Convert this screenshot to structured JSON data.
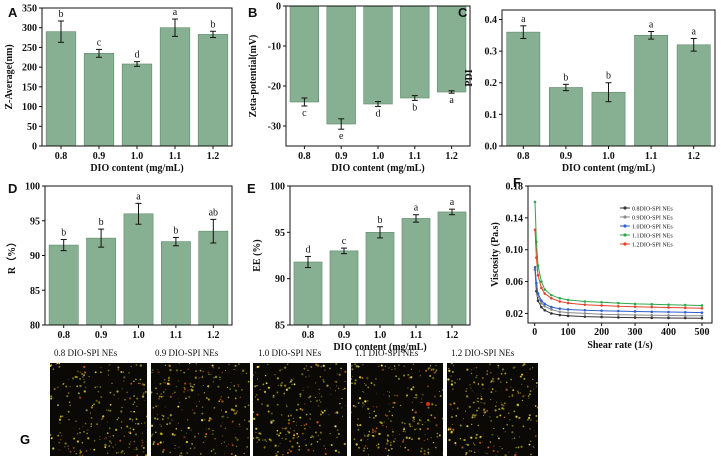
{
  "colors": {
    "bar_fill": "#87B092",
    "bar_stroke": "#5E8A6B",
    "axis": "#111111",
    "viscosity_series": [
      "#333333",
      "#8a8a8a",
      "#2e5fd0",
      "#2ea84a",
      "#e0442a"
    ]
  },
  "chart_data": [
    {
      "panel": "A",
      "type": "bar",
      "categories": [
        "0.8",
        "0.9",
        "1.0",
        "1.1",
        "1.2"
      ],
      "values": [
        290,
        235,
        208,
        300,
        283
      ],
      "errors": [
        27,
        10,
        6,
        22,
        8
      ],
      "sig_labels": [
        "b",
        "c",
        "d",
        "a",
        "b"
      ],
      "ylabel": "Z-Average(nm)",
      "xlabel": "DIO content (mg/mL)",
      "ylim": [
        0,
        350
      ],
      "yticks": [
        0,
        50,
        100,
        150,
        200,
        250,
        300,
        350
      ],
      "xaxis_position": "bottom"
    },
    {
      "panel": "B",
      "type": "bar",
      "categories": [
        "0.8",
        "0.9",
        "1.0",
        "1.1",
        "1.2"
      ],
      "values": [
        -24,
        -29.5,
        -24.5,
        -23,
        -21.5
      ],
      "errors": [
        1,
        1.3,
        0.6,
        0.6,
        0.3
      ],
      "sig_labels": [
        "c",
        "e",
        "d",
        "b",
        "a"
      ],
      "ylabel": "Zeta-potential(mV)",
      "xlabel": "DIO content (mg/mL)",
      "ylim": [
        -35,
        0
      ],
      "yticks": [
        0,
        -10,
        -20,
        -30
      ],
      "xaxis_position": "bottom"
    },
    {
      "panel": "C",
      "type": "bar",
      "categories": [
        "0.8",
        "0.9",
        "1.0",
        "1.1",
        "1.2"
      ],
      "values": [
        0.36,
        0.185,
        0.17,
        0.35,
        0.32
      ],
      "errors": [
        0.02,
        0.01,
        0.03,
        0.012,
        0.02
      ],
      "sig_labels": [
        "a",
        "b",
        "b",
        "a",
        "a"
      ],
      "ylabel": "PDI",
      "xlabel": "DIO content (mg/mL)",
      "ylim": [
        0,
        0.43
      ],
      "yticks": [
        0.0,
        0.1,
        0.2,
        0.3,
        0.4
      ],
      "xaxis_position": "bottom"
    },
    {
      "panel": "D",
      "type": "bar",
      "categories": [
        "0.8",
        "0.9",
        "1.0",
        "1.1",
        "1.2"
      ],
      "values": [
        91.5,
        92.5,
        96,
        92,
        93.5
      ],
      "errors": [
        0.8,
        1.3,
        1.5,
        0.6,
        1.7
      ],
      "sig_labels": [
        "b",
        "b",
        "a",
        "b",
        "ab"
      ],
      "ylabel": "R（%）",
      "xlabel": "",
      "ylim": [
        80,
        100
      ],
      "yticks": [
        80,
        85,
        90,
        95,
        100
      ],
      "xaxis_position": "bottom"
    },
    {
      "panel": "E",
      "type": "bar",
      "categories": [
        "0.8",
        "0.9",
        "1.0",
        "1.1",
        "1.2"
      ],
      "values": [
        91.8,
        93,
        95,
        96.5,
        97.2
      ],
      "errors": [
        0.6,
        0.3,
        0.6,
        0.4,
        0.3
      ],
      "sig_labels": [
        "d",
        "c",
        "b",
        "a",
        "a"
      ],
      "ylabel": "EE (%)",
      "xlabel": "DIO content (mg/mL)",
      "ylim": [
        85,
        100
      ],
      "yticks": [
        85,
        90,
        95,
        100
      ],
      "xaxis_position": "bottom"
    },
    {
      "panel": "F",
      "type": "line",
      "xlabel": "Shear rate (1/s)",
      "ylabel": "Viscosity (Pa.s)",
      "xlim": [
        -20,
        530
      ],
      "ylim": [
        0.008,
        0.18
      ],
      "xticks": [
        0,
        100,
        200,
        300,
        400,
        500
      ],
      "yticks": [
        0.02,
        0.06,
        0.1,
        0.14,
        0.18
      ],
      "x": [
        1,
        5,
        10,
        20,
        30,
        50,
        75,
        100,
        150,
        200,
        250,
        300,
        350,
        400,
        450,
        500
      ],
      "series": [
        {
          "name": "0.8DIO-SPI NEs",
          "values": [
            0.075,
            0.048,
            0.036,
            0.028,
            0.024,
            0.02,
            0.018,
            0.017,
            0.016,
            0.0155,
            0.015,
            0.0148,
            0.0145,
            0.0143,
            0.0142,
            0.014
          ]
        },
        {
          "name": "0.9DIO-SPI NEs",
          "values": [
            0.075,
            0.055,
            0.042,
            0.033,
            0.029,
            0.025,
            0.022,
            0.021,
            0.02,
            0.019,
            0.0185,
            0.018,
            0.0178,
            0.0175,
            0.0172,
            0.017
          ]
        },
        {
          "name": "1.0DIO-SPI NEs",
          "values": [
            0.078,
            0.058,
            0.045,
            0.036,
            0.032,
            0.028,
            0.026,
            0.025,
            0.024,
            0.0235,
            0.023,
            0.0225,
            0.022,
            0.0218,
            0.0215,
            0.021
          ]
        },
        {
          "name": "1.1DIO-SPI NEs",
          "values": [
            0.16,
            0.11,
            0.08,
            0.06,
            0.05,
            0.043,
            0.039,
            0.037,
            0.035,
            0.034,
            0.033,
            0.032,
            0.0315,
            0.031,
            0.0305,
            0.03
          ]
        },
        {
          "name": "1.2DIO-SPI NEs",
          "values": [
            0.125,
            0.09,
            0.068,
            0.052,
            0.045,
            0.039,
            0.035,
            0.033,
            0.031,
            0.03,
            0.029,
            0.0285,
            0.028,
            0.0275,
            0.027,
            0.0265
          ]
        }
      ],
      "legend_position": "top-right"
    }
  ],
  "panel_g": {
    "letter": "G",
    "images": [
      {
        "label": "0.8 DIO-SPI NEs",
        "seed": 11
      },
      {
        "label": "0.9 DIO-SPI NEs",
        "seed": 23
      },
      {
        "label": "1.0 DIO-SPI NEs",
        "seed": 37
      },
      {
        "label": "1.1 DIO-SPI NEs",
        "seed": 41
      },
      {
        "label": "1.2 DIO-SPI NEs",
        "seed": 59
      }
    ]
  }
}
